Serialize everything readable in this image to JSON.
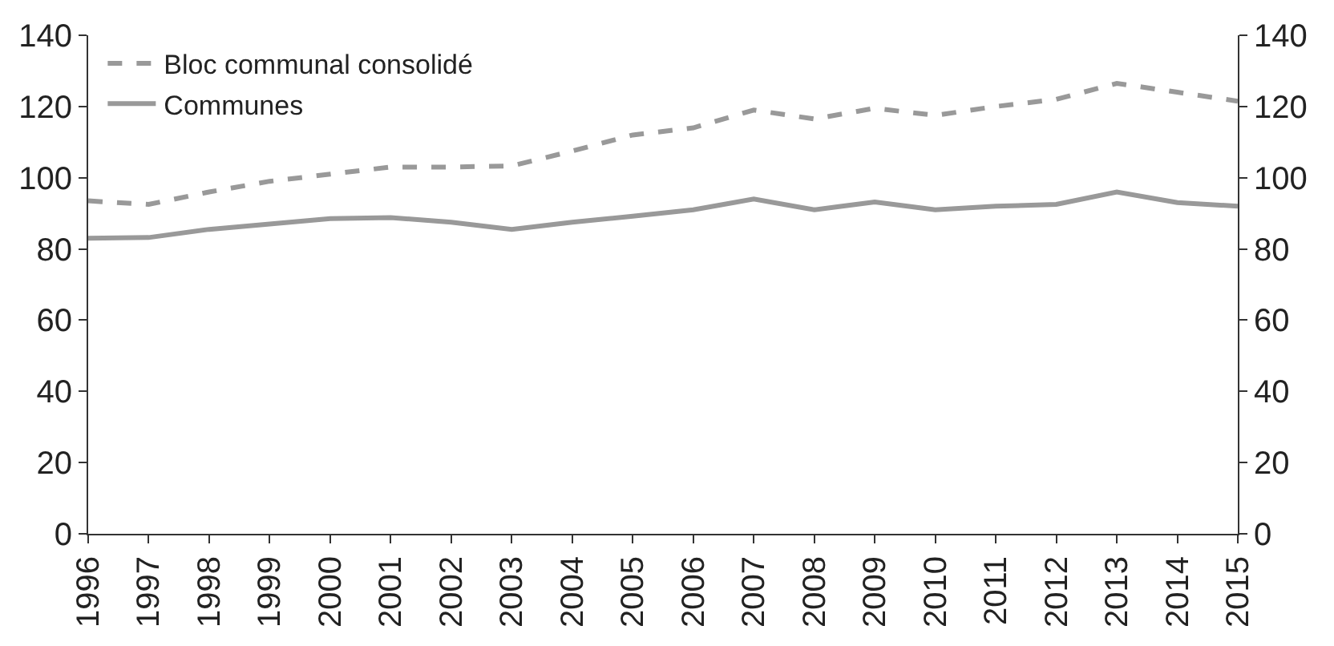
{
  "chart_data": {
    "type": "line",
    "x": [
      1996,
      1997,
      1998,
      1999,
      2000,
      2001,
      2002,
      2003,
      2004,
      2005,
      2006,
      2007,
      2008,
      2009,
      2010,
      2011,
      2012,
      2013,
      2014,
      2015
    ],
    "series": [
      {
        "name": "Bloc communal consolidé",
        "color": "#999999",
        "line_style": "dashed",
        "values": [
          93.5,
          92.5,
          96,
          99,
          101,
          103,
          103,
          103.3,
          107.5,
          112,
          114,
          119,
          116.5,
          119.5,
          117.5,
          120,
          122,
          126.5,
          124,
          121.5
        ]
      },
      {
        "name": "Communes",
        "color": "#999999",
        "line_style": "solid",
        "values": [
          83,
          83.2,
          85.5,
          87,
          88.5,
          88.8,
          87.5,
          85.5,
          87.5,
          89.2,
          91,
          94,
          91,
          93.2,
          91,
          92,
          92.5,
          96,
          93,
          92
        ]
      }
    ],
    "xlim": [
      1996,
      2015
    ],
    "xticks": [
      1996,
      1997,
      1998,
      1999,
      2000,
      2001,
      2002,
      2003,
      2004,
      2005,
      2006,
      2007,
      2008,
      2009,
      2010,
      2011,
      2012,
      2013,
      2014,
      2015
    ],
    "ylim": [
      0,
      140
    ],
    "yticks": [
      0,
      20,
      40,
      60,
      80,
      100,
      120,
      140
    ],
    "y2lim": [
      0,
      140
    ],
    "y2ticks": [
      0,
      20,
      40,
      60,
      80,
      100,
      120,
      140
    ],
    "legend": "top left",
    "marker": "none"
  }
}
